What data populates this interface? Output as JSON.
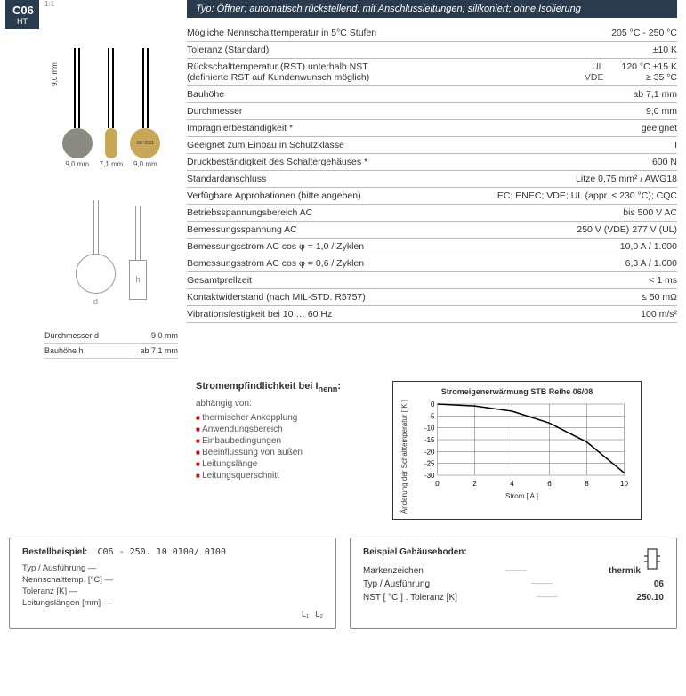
{
  "badge": {
    "code": "C06",
    "sub": "HT",
    "scale": "1:1"
  },
  "header": "Typ: Öffner; automatisch rückstellend; mit Anschlussleitungen; silikoniert; ohne Isolierung",
  "product_dims": {
    "vert": "9,0 mm",
    "d1": "9,0 mm",
    "d2": "7,1 mm",
    "d3": "9,0 mm"
  },
  "dim_table": [
    {
      "l": "Durchmesser d",
      "v": "9,0 mm"
    },
    {
      "l": "Bauhöhe h",
      "v": "ab 7,1 mm"
    }
  ],
  "specs": [
    {
      "l": "Mögliche Nennschalttemperatur in 5°C Stufen",
      "v": "205 °C - 250 °C"
    },
    {
      "l": "Toleranz (Standard)",
      "v": "±10 K"
    },
    {
      "l": "Rückschalttemperatur (RST) unterhalb NST\n(definierte RST auf Kundenwunsch möglich)",
      "m": "UL\nVDE",
      "v": "120 °C ±15 K\n≥ 35 °C"
    },
    {
      "l": "Bauhöhe",
      "v": "ab 7,1 mm"
    },
    {
      "l": "Durchmesser",
      "v": "9,0 mm"
    },
    {
      "l": "Imprägnierbeständigkeit *",
      "v": "geeignet"
    },
    {
      "l": "Geeignet zum Einbau in Schutzklasse",
      "v": "I"
    },
    {
      "l": "Druckbeständigkeit des Schaltergehäuses *",
      "v": "600 N"
    },
    {
      "l": "Standardanschluss",
      "v": "Litze 0,75 mm² / AWG18"
    },
    {
      "l": "Verfügbare Approbationen (bitte angeben)",
      "v": "IEC; ENEC; VDE; UL (appr. ≤ 230 °C); CQC"
    },
    {
      "l": "Betriebsspannungsbereich AC",
      "v": "bis 500 V AC"
    },
    {
      "l": "Bemessungsspannung AC",
      "v": "250 V (VDE) 277 V (UL)"
    },
    {
      "l": "Bemessungsstrom AC cos φ = 1,0 / Zyklen",
      "v": "10,0 A / 1.000"
    },
    {
      "l": "Bemessungsstrom AC cos φ = 0,6 / Zyklen",
      "v": "6,3 A / 1.000"
    },
    {
      "l": "Gesamtprellzeit",
      "v": "< 1 ms"
    },
    {
      "l": "Kontaktwiderstand (nach MIL-STD. R5757)",
      "v": "≤ 50 mΩ"
    },
    {
      "l": "Vibrationsfestigkeit bei 10 … 60 Hz",
      "v": "100 m/s²"
    }
  ],
  "sensitivity": {
    "title": "Stromempfindlichkeit bei I",
    "title_sub": "nenn",
    "title_suffix": ":",
    "dep": "abhängig von:",
    "items": [
      "thermischer Ankopplung",
      "Anwendungsbereich",
      "Einbaubedingungen",
      "Beeinflussung von außen",
      "Leitungslänge",
      "Leitungsquerschnitt"
    ]
  },
  "chart": {
    "title": "Stromeigenerwärmung STB Reihe 06/08",
    "ylabel": "Änderung der Schalttemperatur [ K ]",
    "xlabel": "Strom [ A ]",
    "xticks": [
      "0",
      "2",
      "4",
      "6",
      "8",
      "10"
    ],
    "yticks": [
      "0",
      "-5",
      "-10",
      "-15",
      "-20",
      "-25",
      "-30"
    ],
    "xlim": [
      0,
      10
    ],
    "ylim": [
      -30,
      0
    ],
    "curve": [
      [
        0,
        0
      ],
      [
        2,
        -0.8
      ],
      [
        4,
        -3
      ],
      [
        6,
        -8
      ],
      [
        8,
        -16
      ],
      [
        10,
        -29
      ]
    ],
    "line_color": "#000000",
    "grid_color": "#666666",
    "bg_color": "#ffffff"
  },
  "order_example": {
    "title": "Bestellbeispiel:",
    "code": "C06 - 250. 10 0100/ 0100",
    "tree": [
      "Typ / Ausführung",
      "Nennschalttemp. [°C]",
      "Toleranz [K]",
      "Leitungslängen [mm]"
    ],
    "L1": "L₁",
    "L2": "L₂"
  },
  "housing": {
    "title": "Beispiel Gehäuseboden:",
    "rows": [
      {
        "l": "Markenzeichen",
        "v": "thermik"
      },
      {
        "l": "Typ / Ausführung",
        "v": "06"
      },
      {
        "l": "NST [ °C ] . Toleranz [K]",
        "v": "250.10"
      }
    ]
  },
  "colors": {
    "dark_blue": "#2a3b4d",
    "red_bullet": "#c00",
    "brass": "#c8a858",
    "gray_sensor": "#8a8a82"
  }
}
